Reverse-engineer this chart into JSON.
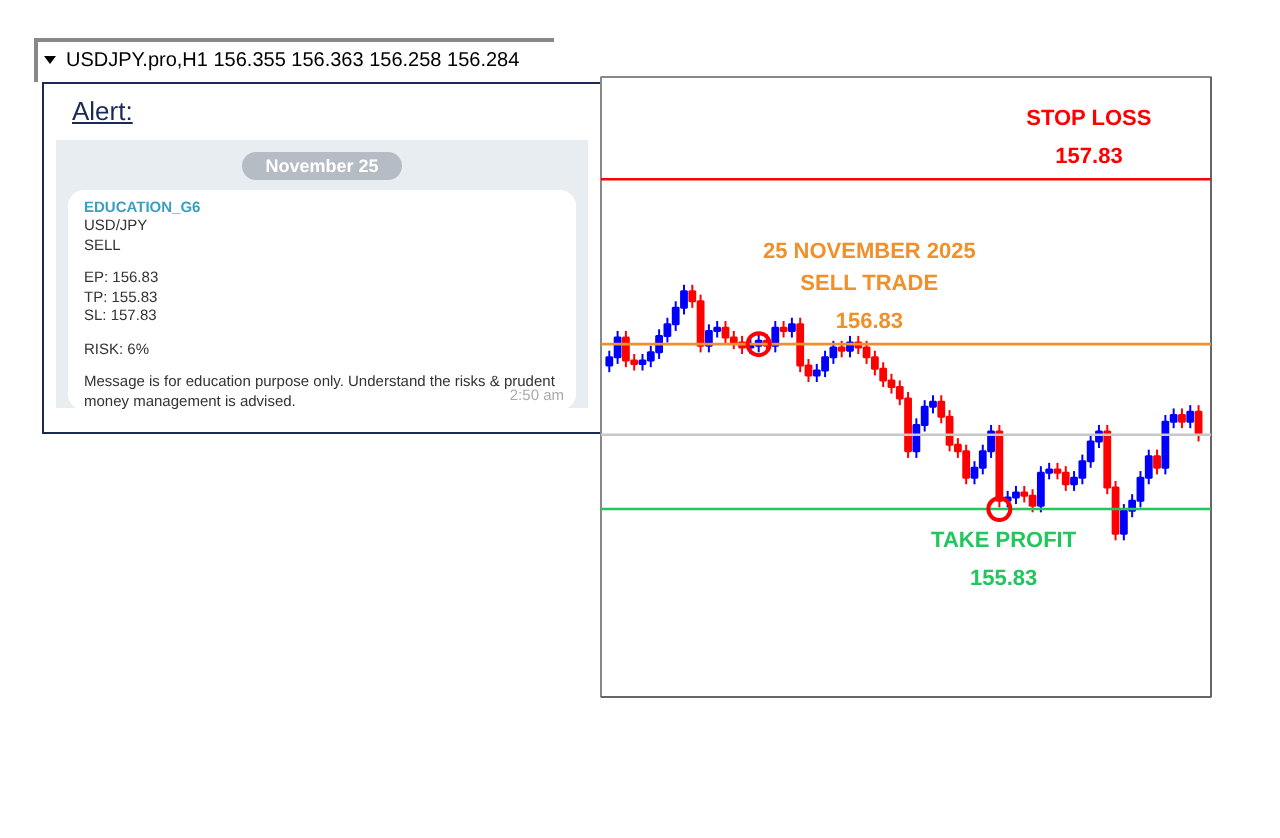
{
  "chart_data": {
    "type": "candlestick",
    "title": "USDJPY.pro,H1  156.355 156.363 156.258 156.284",
    "categories": [
      null,
      null,
      null,
      null,
      null,
      null,
      null,
      null,
      null,
      null,
      null,
      null,
      null,
      null,
      null,
      null,
      null,
      null,
      null,
      null,
      null,
      null,
      null,
      null,
      null,
      null,
      null,
      null,
      null,
      null,
      null,
      null,
      null,
      null,
      null,
      null,
      null,
      null,
      null,
      null,
      null,
      null,
      null,
      null,
      null,
      null,
      null,
      null,
      null,
      null,
      null,
      null,
      null,
      null,
      null,
      null,
      null,
      null,
      null,
      null,
      null,
      null,
      null,
      null,
      null,
      null,
      null,
      null,
      null,
      null,
      null,
      null
    ],
    "ohlc": [
      [
        156.7,
        156.79,
        156.66,
        156.75
      ],
      [
        156.75,
        156.91,
        156.71,
        156.87
      ],
      [
        156.87,
        156.91,
        156.69,
        156.73
      ],
      [
        156.73,
        156.77,
        156.67,
        156.71
      ],
      [
        156.71,
        156.77,
        156.67,
        156.73
      ],
      [
        156.73,
        156.82,
        156.69,
        156.78
      ],
      [
        156.78,
        156.92,
        156.74,
        156.88
      ],
      [
        156.88,
        156.99,
        156.84,
        156.95
      ],
      [
        156.95,
        157.09,
        156.91,
        157.05
      ],
      [
        157.05,
        157.19,
        157.01,
        157.15
      ],
      [
        157.15,
        157.19,
        157.05,
        157.09
      ],
      [
        157.09,
        157.13,
        156.78,
        156.82
      ],
      [
        156.82,
        156.95,
        156.78,
        156.91
      ],
      [
        156.91,
        156.97,
        156.87,
        156.93
      ],
      [
        156.93,
        156.97,
        156.83,
        156.87
      ],
      [
        156.87,
        156.91,
        156.8,
        156.84
      ],
      [
        156.84,
        156.88,
        156.77,
        156.81
      ],
      [
        156.81,
        156.86,
        156.77,
        156.82
      ],
      [
        156.82,
        156.89,
        156.78,
        156.85
      ],
      [
        156.85,
        156.89,
        156.78,
        156.82
      ],
      [
        156.82,
        156.97,
        156.78,
        156.93
      ],
      [
        156.93,
        156.97,
        156.87,
        156.91
      ],
      [
        156.91,
        156.99,
        156.87,
        156.95
      ],
      [
        156.95,
        156.99,
        156.66,
        156.7
      ],
      [
        156.7,
        156.74,
        156.6,
        156.64
      ],
      [
        156.64,
        156.71,
        156.6,
        156.67
      ],
      [
        156.67,
        156.79,
        156.63,
        156.75
      ],
      [
        156.75,
        156.85,
        156.71,
        156.81
      ],
      [
        156.81,
        156.85,
        156.75,
        156.79
      ],
      [
        156.79,
        156.88,
        156.75,
        156.84
      ],
      [
        156.84,
        156.88,
        156.77,
        156.81
      ],
      [
        156.81,
        156.85,
        156.71,
        156.75
      ],
      [
        156.75,
        156.79,
        156.64,
        156.68
      ],
      [
        156.68,
        156.72,
        156.57,
        156.61
      ],
      [
        156.61,
        156.65,
        156.53,
        156.57
      ],
      [
        156.57,
        156.61,
        156.46,
        156.5
      ],
      [
        156.5,
        156.54,
        156.14,
        156.18
      ],
      [
        156.18,
        156.38,
        156.14,
        156.34
      ],
      [
        156.34,
        156.49,
        156.3,
        156.45
      ],
      [
        156.45,
        156.52,
        156.41,
        156.48
      ],
      [
        156.48,
        156.52,
        156.35,
        156.39
      ],
      [
        156.39,
        156.43,
        156.18,
        156.22
      ],
      [
        156.22,
        156.26,
        156.14,
        156.18
      ],
      [
        156.18,
        156.22,
        155.98,
        156.02
      ],
      [
        156.02,
        156.12,
        155.98,
        156.08
      ],
      [
        156.08,
        156.22,
        156.04,
        156.18
      ],
      [
        156.18,
        156.34,
        156.14,
        156.3
      ],
      [
        156.3,
        156.34,
        155.84,
        155.88
      ],
      [
        155.88,
        155.94,
        155.84,
        155.9
      ],
      [
        155.9,
        155.97,
        155.86,
        155.93
      ],
      [
        155.93,
        155.97,
        155.87,
        155.91
      ],
      [
        155.91,
        155.95,
        155.81,
        155.85
      ],
      [
        155.85,
        156.09,
        155.81,
        156.05
      ],
      [
        156.05,
        156.11,
        156.01,
        156.07
      ],
      [
        156.07,
        156.11,
        156.01,
        156.05
      ],
      [
        156.05,
        156.09,
        155.94,
        155.98
      ],
      [
        155.98,
        156.06,
        155.94,
        156.02
      ],
      [
        156.02,
        156.16,
        155.98,
        156.12
      ],
      [
        156.12,
        156.28,
        156.08,
        156.24
      ],
      [
        156.24,
        156.34,
        156.2,
        156.3
      ],
      [
        156.3,
        156.34,
        155.92,
        155.96
      ],
      [
        155.96,
        156.0,
        155.64,
        155.68
      ],
      [
        155.68,
        155.86,
        155.64,
        155.82
      ],
      [
        155.82,
        155.92,
        155.78,
        155.88
      ],
      [
        155.88,
        156.06,
        155.84,
        156.02
      ],
      [
        156.02,
        156.19,
        155.98,
        156.15
      ],
      [
        156.15,
        156.19,
        156.04,
        156.08
      ],
      [
        156.08,
        156.4,
        156.04,
        156.36
      ],
      [
        156.36,
        156.44,
        156.32,
        156.4
      ],
      [
        156.4,
        156.44,
        156.32,
        156.36
      ],
      [
        156.36,
        156.46,
        156.32,
        156.42
      ],
      [
        156.42,
        156.46,
        156.24,
        156.28
      ]
    ],
    "colors": [
      "#0000ff",
      "#0000ff",
      "#ff0000",
      "#ff0000",
      "#0000ff",
      "#0000ff",
      "#0000ff",
      "#0000ff",
      "#0000ff",
      "#0000ff",
      "#ff0000",
      "#ff0000",
      "#0000ff",
      "#0000ff",
      "#ff0000",
      "#ff0000",
      "#ff0000",
      "#0000ff",
      "#0000ff",
      "#ff0000",
      "#0000ff",
      "#ff0000",
      "#0000ff",
      "#ff0000",
      "#ff0000",
      "#0000ff",
      "#0000ff",
      "#0000ff",
      "#ff0000",
      "#0000ff",
      "#ff0000",
      "#ff0000",
      "#ff0000",
      "#ff0000",
      "#ff0000",
      "#ff0000",
      "#ff0000",
      "#0000ff",
      "#0000ff",
      "#0000ff",
      "#ff0000",
      "#ff0000",
      "#ff0000",
      "#ff0000",
      "#0000ff",
      "#0000ff",
      "#0000ff",
      "#ff0000",
      "#0000ff",
      "#0000ff",
      "#ff0000",
      "#ff0000",
      "#0000ff",
      "#0000ff",
      "#ff0000",
      "#ff0000",
      "#0000ff",
      "#0000ff",
      "#0000ff",
      "#0000ff",
      "#ff0000",
      "#ff0000",
      "#0000ff",
      "#0000ff",
      "#0000ff",
      "#0000ff",
      "#ff0000",
      "#0000ff",
      "#0000ff",
      "#ff0000",
      "#0000ff",
      "#ff0000"
    ],
    "series": [
      {
        "type": "scatter",
        "marker": "circle",
        "color": "#ff0000",
        "values": [
          null,
          null,
          null,
          null,
          null,
          null,
          null,
          null,
          null,
          null,
          null,
          null,
          null,
          null,
          null,
          null,
          null,
          null,
          156.83,
          null,
          null,
          null,
          null,
          null,
          null,
          null,
          null,
          null,
          null,
          null,
          null,
          null,
          null,
          null,
          null,
          null,
          null,
          null,
          null,
          null,
          null,
          null,
          null,
          null,
          null,
          null,
          null,
          155.83,
          null,
          null,
          null,
          null,
          null,
          null,
          null,
          null,
          null,
          null,
          null,
          null,
          null,
          null,
          null,
          null,
          null,
          null,
          null,
          null,
          null,
          null,
          null,
          null
        ]
      }
    ],
    "ylim": [
      154.69,
      158.45
    ],
    "ref_lines": [
      {
        "axis": "y",
        "value": 157.83,
        "label": "STOP LOSS\n157.83",
        "color": "#ff0000"
      },
      {
        "axis": "y",
        "value": 156.83,
        "label": "25 NOVEMBER 2025\nSELL TRADE\n156.83",
        "color": "#f0902a"
      },
      {
        "axis": "y",
        "value": 156.28,
        "color": "#c8c8c8"
      },
      {
        "axis": "y",
        "value": 155.83,
        "label": "TAKE PROFIT\n155.83",
        "color": "#22c55e"
      }
    ],
    "annotations": [
      "Alert:",
      "November 25",
      "EDUCATION_G6",
      "USD/JPY",
      "SELL",
      "EP: 156.83",
      "TP: 155.83",
      "SL: 157.83",
      "RISK: 6%",
      "Message is for education purpose only. Understand the risks & prudent money management is advised.",
      "2:50 am"
    ]
  }
}
